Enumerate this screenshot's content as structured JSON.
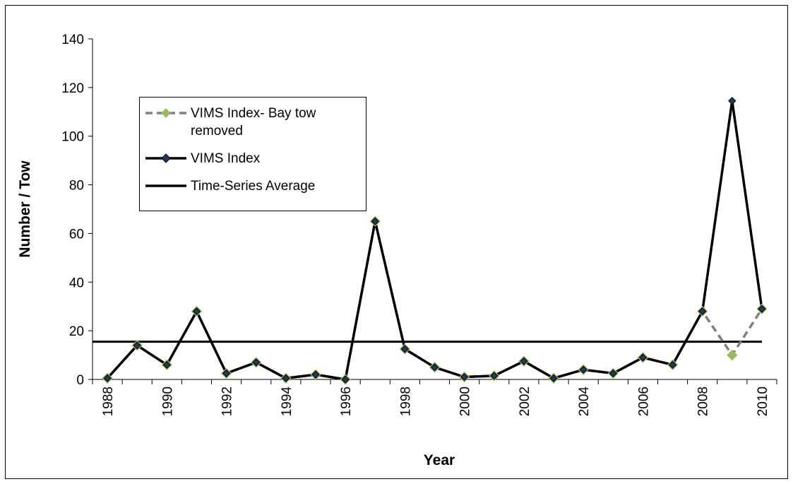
{
  "chart_data": {
    "type": "line",
    "xlabel": "Year",
    "ylabel": "Number / Tow",
    "categories": [
      "1988",
      null,
      "1990",
      null,
      "1992",
      null,
      "1994",
      null,
      "1996",
      null,
      "1998",
      null,
      "2000",
      null,
      "2002",
      null,
      "2004",
      null,
      "2006",
      null,
      "2008",
      null,
      "2010"
    ],
    "series": [
      {
        "name": "VIMS Index- Bay tow removed",
        "color": "#808080",
        "marker_color": "#9bbb59",
        "dashed": true,
        "values": [
          0.5,
          14,
          6,
          28,
          2.5,
          7,
          0.5,
          2,
          0,
          65,
          12.5,
          5,
          1,
          1.5,
          7.5,
          0.5,
          4,
          2.5,
          9,
          6,
          28,
          10,
          29
        ]
      },
      {
        "name": "VIMS Index",
        "color": "#000000",
        "marker_color": "#1f3864",
        "dashed": false,
        "values": [
          0.5,
          14,
          6,
          28,
          2.5,
          7,
          0.5,
          2,
          0,
          65,
          12.5,
          5,
          1,
          1.5,
          7.5,
          0.5,
          4,
          2.5,
          9,
          6,
          28,
          114.5,
          29
        ]
      }
    ],
    "reference_lines": [
      {
        "name": "Time-Series Average",
        "color": "#000000",
        "value": 15.5
      }
    ],
    "ylim": [
      0,
      140
    ],
    "yticks": [
      0,
      20,
      40,
      60,
      80,
      100,
      120,
      140
    ],
    "grid": false,
    "legend_position": "upper left"
  }
}
